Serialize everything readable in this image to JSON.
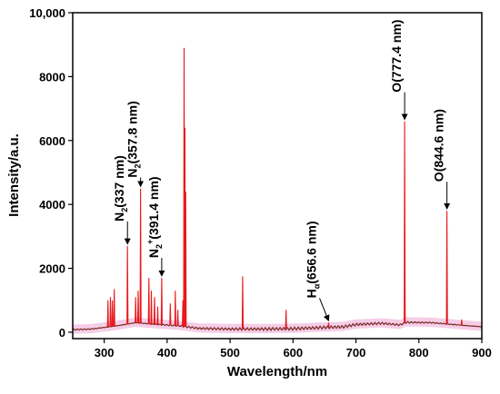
{
  "chart_data": {
    "type": "line",
    "title": "",
    "xlabel": "Wavelength/nm",
    "ylabel": "Intensity/a.u.",
    "xlim": [
      250,
      900
    ],
    "ylim": [
      -200,
      10000
    ],
    "x_ticks": [
      300,
      400,
      500,
      600,
      700,
      800,
      900
    ],
    "y_ticks": [
      0,
      2000,
      4000,
      6000,
      8000,
      10000
    ],
    "y_tick_labels": [
      "0",
      "2000",
      "4000",
      "6000",
      "8000",
      "10,000"
    ],
    "grid": false,
    "legend": "none",
    "colors": {
      "line": "#e8181c",
      "baseline": "#7a2a22",
      "halo": "#f1b8dd"
    },
    "baseline": [
      {
        "x": 250,
        "y": 80
      },
      {
        "x": 280,
        "y": 100
      },
      {
        "x": 300,
        "y": 150
      },
      {
        "x": 320,
        "y": 200
      },
      {
        "x": 350,
        "y": 300
      },
      {
        "x": 380,
        "y": 250
      },
      {
        "x": 420,
        "y": 200
      },
      {
        "x": 450,
        "y": 120
      },
      {
        "x": 500,
        "y": 100
      },
      {
        "x": 550,
        "y": 100
      },
      {
        "x": 600,
        "y": 110
      },
      {
        "x": 650,
        "y": 150
      },
      {
        "x": 680,
        "y": 170
      },
      {
        "x": 700,
        "y": 240
      },
      {
        "x": 740,
        "y": 280
      },
      {
        "x": 770,
        "y": 230
      },
      {
        "x": 780,
        "y": 310
      },
      {
        "x": 820,
        "y": 300
      },
      {
        "x": 850,
        "y": 250
      },
      {
        "x": 880,
        "y": 200
      },
      {
        "x": 900,
        "y": 170
      }
    ],
    "peaks": [
      {
        "x": 306,
        "y": 1000
      },
      {
        "x": 310,
        "y": 1100
      },
      {
        "x": 313,
        "y": 1000
      },
      {
        "x": 316,
        "y": 1350
      },
      {
        "x": 337,
        "y": 2700
      },
      {
        "x": 350,
        "y": 1100
      },
      {
        "x": 354,
        "y": 1300
      },
      {
        "x": 357.8,
        "y": 4500
      },
      {
        "x": 371,
        "y": 1700
      },
      {
        "x": 375,
        "y": 1300
      },
      {
        "x": 380,
        "y": 1100
      },
      {
        "x": 385,
        "y": 800
      },
      {
        "x": 391.4,
        "y": 1700
      },
      {
        "x": 405,
        "y": 900
      },
      {
        "x": 413,
        "y": 1300
      },
      {
        "x": 417,
        "y": 700
      },
      {
        "x": 425,
        "y": 1000
      },
      {
        "x": 427.0,
        "y": 8900
      },
      {
        "x": 428.2,
        "y": 6400
      },
      {
        "x": 429.5,
        "y": 4400
      },
      {
        "x": 520,
        "y": 1750
      },
      {
        "x": 589,
        "y": 700
      },
      {
        "x": 656.6,
        "y": 300
      },
      {
        "x": 777.4,
        "y": 6600
      },
      {
        "x": 844.6,
        "y": 3800
      },
      {
        "x": 868,
        "y": 400
      }
    ],
    "annotations": [
      {
        "label": "N",
        "sub": "2",
        "sup": "",
        "rest": "(337 nm)",
        "x": 337,
        "y": 2700
      },
      {
        "label": "N",
        "sub": "2",
        "sup": "",
        "rest": "(357.8 nm)",
        "x": 357.8,
        "y": 4500
      },
      {
        "label": "N",
        "sub": "2",
        "sup": "+",
        "rest": "(391.4 nm)",
        "x": 391.4,
        "y": 1700
      },
      {
        "label": "H",
        "sub": "α",
        "sup": "",
        "rest": "(656.6 nm)",
        "x": 656.6,
        "y": 300
      },
      {
        "label": "O",
        "sub": "",
        "sup": "",
        "rest": "(777.4 nm)",
        "x": 777.4,
        "y": 6600
      },
      {
        "label": "O",
        "sub": "",
        "sup": "",
        "rest": "(844.6 nm)",
        "x": 844.6,
        "y": 3800
      }
    ]
  }
}
